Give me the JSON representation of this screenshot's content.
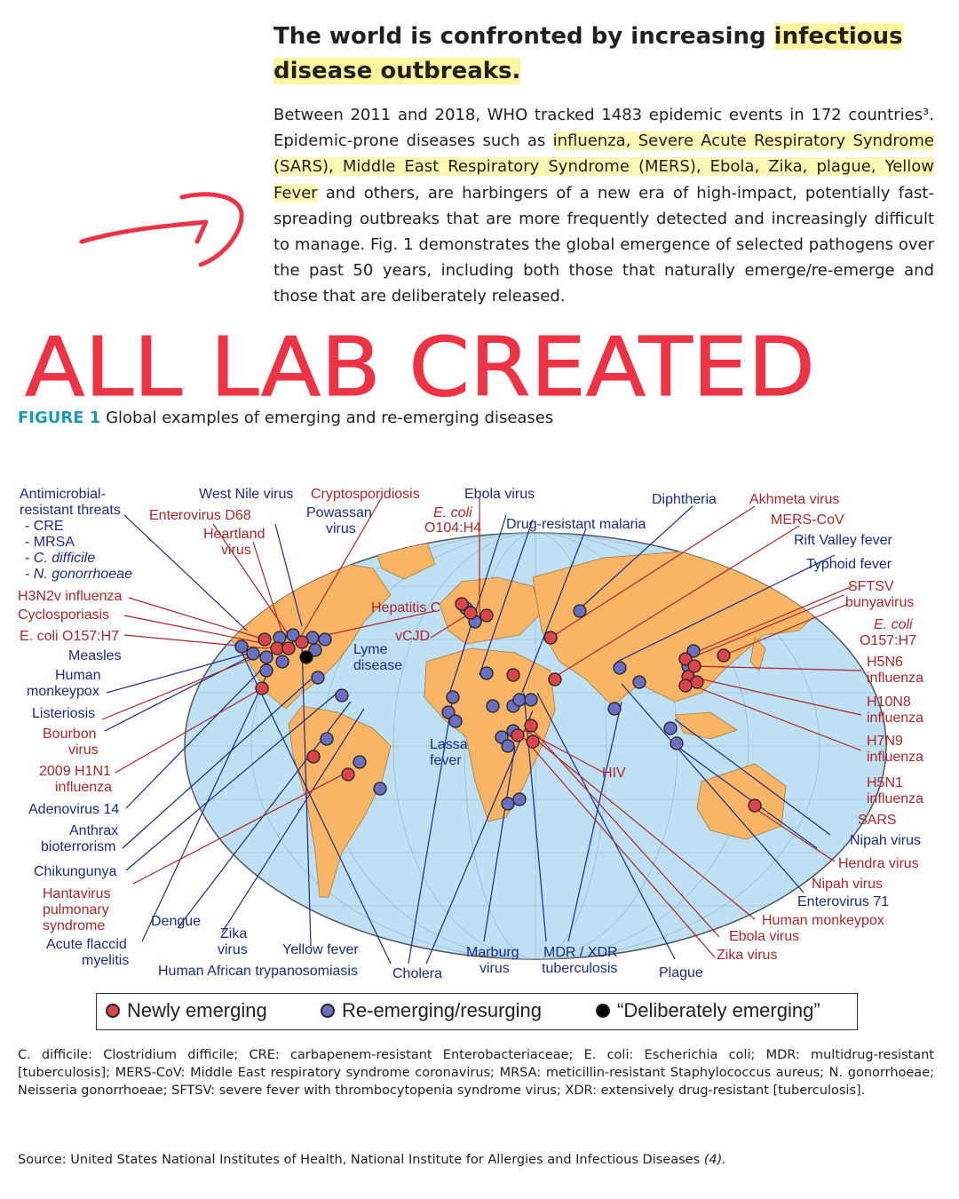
{
  "heading": {
    "part1": "The world is confronted by increasing ",
    "part2": "infectious",
    "part3": "disease outbreaks."
  },
  "paragraph": {
    "s1": "Between 2011 and 2018, WHO tracked 1483 epidemic events in 172 countries³. Epidemic-prone diseases such as ",
    "s2": "influenza, Severe Acute Respiratory Syndrome (SARS), Middle East Respiratory Syndrome (MERS), Ebola, Zika, plague, Yellow Fever",
    "s3": " and others, are harbingers of a new era of high-impact, potentially fast-spreading outbreaks that are more frequently detected and increasingly difficult to manage. Fig. 1 demonstrates the global emergence of selected pathogens over the past 50 years, including both those that naturally emerge/re-emerge and those that are deliberately released."
  },
  "handwritten_annotation": "ALL LAB CREATED",
  "figure": {
    "number": "FIGURE 1",
    "title": "Global examples of emerging and re-emerging diseases",
    "labels": {
      "antimicrobial": "Antimicrobial-",
      "resistant": "resistant threats",
      "cre": "- CRE",
      "mrsa": "- MRSA",
      "cdiff": "- C. difficile",
      "ngon": "- N. gonorrhoeae",
      "h3n2v": "H3N2v influenza",
      "cyclo": "Cyclosporiasis",
      "ecoli_left": "E. coli O157:H7",
      "measles": "Measles",
      "human_mpx1": "Human",
      "human_mpx2": "monkeypox",
      "listeriosis": "Listeriosis",
      "bourbon1": "Bourbon",
      "bourbon2": "virus",
      "h1n1_1": "2009 H1N1",
      "h1n1_2": "influenza",
      "adeno": "Adenovirus 14",
      "anthrax1": "Anthrax",
      "anthrax2": "bioterrorism",
      "chik": "Chikungunya",
      "hanta1": "Hantavirus",
      "hanta2": "pulmonary",
      "hanta3": "syndrome",
      "afm1": "Acute flaccid",
      "afm2": "myelitis",
      "dengue": "Dengue",
      "zika1": "Zika",
      "zika2": "virus",
      "yellow": "Yellow fever",
      "hat": "Human African trypanosomiasis",
      "cholera": "Cholera",
      "marburg1": "Marburg",
      "marburg2": "virus",
      "mdr1": "MDR / XDR",
      "mdr2": "tuberculosis",
      "plague": "Plague",
      "westnile": "West Nile virus",
      "entero": "Enterovirus D68",
      "heartland1": "Heartland",
      "heartland2": "virus",
      "crypto": "Cryptosporidiosis",
      "powassan1": "Powassan",
      "powassan2": "virus",
      "ebola_top": "Ebola virus",
      "ecoli_top1": "E. coli",
      "ecoli_top2": "O104:H4",
      "drugmal": "Drug-resistant malaria",
      "diphtheria": "Diphtheria",
      "hepc": "Hepatitis C",
      "vcjd": "vCJD",
      "lyme1": "Lyme",
      "lyme2": "disease",
      "lassa1": "Lassa",
      "lassa2": "fever",
      "hiv": "HIV",
      "akhmeta": "Akhmeta virus",
      "merscov": "MERS-CoV",
      "rvf": "Rift Valley fever",
      "typhoid": "Typhoid fever",
      "sftsv1": "SFTSV",
      "sftsv2": "bunyavirus",
      "ecoli_r1": "E. coli",
      "ecoli_r2": "O157:H7",
      "h5n6_1": "H5N6",
      "h5n6_2": "influenza",
      "h10n8_1": "H10N8",
      "h10n8_2": "influenza",
      "h7n9_1": "H7N9",
      "h7n9_2": "influenza",
      "h5n1_1": "H5N1",
      "h5n1_2": "influenza",
      "sars": "SARS",
      "nipah1": "Nipah virus",
      "hendra": "Hendra virus",
      "nipah2": "Nipah virus",
      "ev71": "Enterovirus 71",
      "human_mpx_r": "Human monkeypox",
      "ebola_r": "Ebola virus",
      "zika_r": "Zika virus"
    },
    "legend": {
      "newly": "Newly emerging",
      "reemerging": "Re-emerging/resurging",
      "deliberate": "“Deliberately emerging”"
    },
    "colors": {
      "newly": "#d8464b",
      "reemerging": "#6b6fc0",
      "deliberate": "#000000",
      "land": "#f8b566",
      "ocean": "#bfe0f2"
    }
  },
  "footnote": "C. difficile: Clostridium difficile; CRE: carbapenem-resistant Enterobacteriaceae; E. coli: Escherichia coli; MDR: multidrug-resistant [tuberculosis]; MERS-CoV: Middle East respiratory syndrome coronavirus; MRSA: meticillin-resistant Staphylococcus aureus; N. gonorrhoeae; Neisseria gonorrhoeae; SFTSV: severe fever with thrombocytopenia syndrome virus; XDR: extensively drug-resistant [tuberculosis].",
  "source": {
    "text": "Source: United States National Institutes of Health, National Institute for Allergies and Infectious Diseases ",
    "ref": "(4)."
  }
}
